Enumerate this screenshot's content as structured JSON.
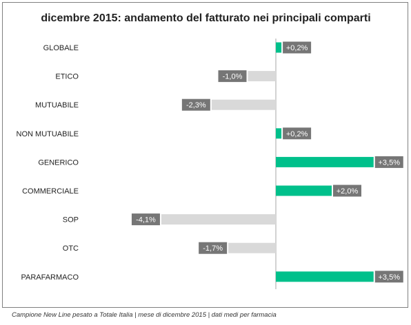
{
  "chart_data": {
    "type": "bar",
    "orientation": "horizontal",
    "title": "dicembre 2015: andamento del fatturato nei principali comparti",
    "categories": [
      "GLOBALE",
      "ETICO",
      "MUTUABILE",
      "NON MUTUABILE",
      "GENERICO",
      "COMMERCIALE",
      "SOP",
      "OTC",
      "PARAFARMACO"
    ],
    "values": [
      0.2,
      -1.0,
      -2.3,
      0.2,
      3.5,
      2.0,
      -4.1,
      -1.7,
      3.5
    ],
    "data_labels": [
      "+0,2%",
      "-1,0%",
      "-2,3%",
      "+0,2%",
      "+3,5%",
      "+2,0%",
      "-4,1%",
      "-1,7%",
      "+3,5%"
    ],
    "xlim": [
      -4.8,
      4.7
    ],
    "grid": false,
    "legend": "none",
    "colors": {
      "positive": "#00c08b",
      "negative": "#d9d9d9",
      "label_bg": "#767676",
      "label_text": "#ffffff",
      "axis": "#a6a6a6"
    }
  },
  "footnote": "Campione New Line pesato a Totale Italia | mese di dicembre 2015 | dati medi per farmacia"
}
